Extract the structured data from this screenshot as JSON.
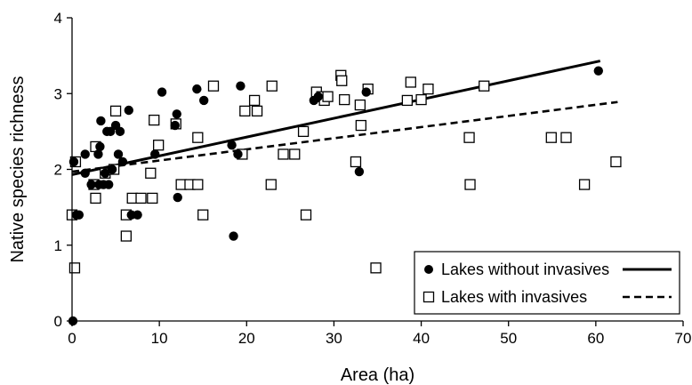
{
  "chart_data": {
    "type": "scatter",
    "title": "",
    "xlabel": "Area (ha)",
    "ylabel": "Native species richness",
    "xlim": [
      0,
      70
    ],
    "ylim": [
      0,
      4
    ],
    "x_ticks": [
      "0",
      "10",
      "20",
      "30",
      "40",
      "50",
      "60",
      "70"
    ],
    "y_ticks": [
      "0",
      "1",
      "2",
      "3",
      "4"
    ],
    "grid": false,
    "legend_position": "bottom-right",
    "series": [
      {
        "name": "Lakes without invasives",
        "marker": "filled-circle",
        "line_style": "solid",
        "color": "#000000",
        "points": [
          [
            0.1,
            0.0
          ],
          [
            0.2,
            2.1
          ],
          [
            0.5,
            1.4
          ],
          [
            0.8,
            1.4
          ],
          [
            1.5,
            1.95
          ],
          [
            1.5,
            2.2
          ],
          [
            2.2,
            1.8
          ],
          [
            3.0,
            2.2
          ],
          [
            3.1,
            1.8
          ],
          [
            3.2,
            2.3
          ],
          [
            3.3,
            2.64
          ],
          [
            3.6,
            1.8
          ],
          [
            3.8,
            1.95
          ],
          [
            4.0,
            2.5
          ],
          [
            4.2,
            1.8
          ],
          [
            4.4,
            2.5
          ],
          [
            4.6,
            2.0
          ],
          [
            5.0,
            2.58
          ],
          [
            5.3,
            2.2
          ],
          [
            5.5,
            2.5
          ],
          [
            5.8,
            2.1
          ],
          [
            6.5,
            2.78
          ],
          [
            6.8,
            1.4
          ],
          [
            7.5,
            1.4
          ],
          [
            9.5,
            2.2
          ],
          [
            10.3,
            3.02
          ],
          [
            11.8,
            2.58
          ],
          [
            12.0,
            2.73
          ],
          [
            12.1,
            1.63
          ],
          [
            14.3,
            3.06
          ],
          [
            15.1,
            2.91
          ],
          [
            18.3,
            2.32
          ],
          [
            18.5,
            1.12
          ],
          [
            19.0,
            2.2
          ],
          [
            19.3,
            3.1
          ],
          [
            27.7,
            2.91
          ],
          [
            28.2,
            2.96
          ],
          [
            32.9,
            1.97
          ],
          [
            33.7,
            3.02
          ],
          [
            60.3,
            3.3
          ]
        ],
        "trendline": {
          "type": "linear",
          "intercept": 1.93,
          "slope": 0.0248,
          "x_range": [
            0,
            60.5
          ]
        }
      },
      {
        "name": "Lakes with invasives",
        "marker": "open-square",
        "line_style": "dashed",
        "color": "#000000",
        "points": [
          [
            0.0,
            1.4
          ],
          [
            0.3,
            0.7
          ],
          [
            0.4,
            2.1
          ],
          [
            2.5,
            1.8
          ],
          [
            2.7,
            2.3
          ],
          [
            2.7,
            1.62
          ],
          [
            3.8,
            1.95
          ],
          [
            4.8,
            2.0
          ],
          [
            5.0,
            2.77
          ],
          [
            6.2,
            1.12
          ],
          [
            6.2,
            1.4
          ],
          [
            6.9,
            1.62
          ],
          [
            7.9,
            1.62
          ],
          [
            9.0,
            1.95
          ],
          [
            9.2,
            1.62
          ],
          [
            9.4,
            2.65
          ],
          [
            9.9,
            2.32
          ],
          [
            11.9,
            2.6
          ],
          [
            12.5,
            1.8
          ],
          [
            13.5,
            1.8
          ],
          [
            14.4,
            2.42
          ],
          [
            14.4,
            1.8
          ],
          [
            15.0,
            1.4
          ],
          [
            16.2,
            3.1
          ],
          [
            19.5,
            2.2
          ],
          [
            19.8,
            2.77
          ],
          [
            20.9,
            2.91
          ],
          [
            21.2,
            2.77
          ],
          [
            22.8,
            1.8
          ],
          [
            22.9,
            3.1
          ],
          [
            24.2,
            2.2
          ],
          [
            25.5,
            2.2
          ],
          [
            26.5,
            2.5
          ],
          [
            26.8,
            1.4
          ],
          [
            28.0,
            3.02
          ],
          [
            28.6,
            2.96
          ],
          [
            28.9,
            2.91
          ],
          [
            29.3,
            2.96
          ],
          [
            30.8,
            3.24
          ],
          [
            30.9,
            3.17
          ],
          [
            31.2,
            2.92
          ],
          [
            32.5,
            2.1
          ],
          [
            33.0,
            2.85
          ],
          [
            33.1,
            2.58
          ],
          [
            33.9,
            3.06
          ],
          [
            34.8,
            0.7
          ],
          [
            38.4,
            2.91
          ],
          [
            38.8,
            3.15
          ],
          [
            40.0,
            2.92
          ],
          [
            40.8,
            3.06
          ],
          [
            45.5,
            2.42
          ],
          [
            45.6,
            1.8
          ],
          [
            47.2,
            3.1
          ],
          [
            54.9,
            2.42
          ],
          [
            56.6,
            2.42
          ],
          [
            58.7,
            1.8
          ],
          [
            62.3,
            2.1
          ]
        ],
        "trendline": {
          "type": "linear",
          "intercept": 1.97,
          "slope": 0.0147,
          "x_range": [
            0,
            62.5
          ]
        }
      }
    ]
  }
}
